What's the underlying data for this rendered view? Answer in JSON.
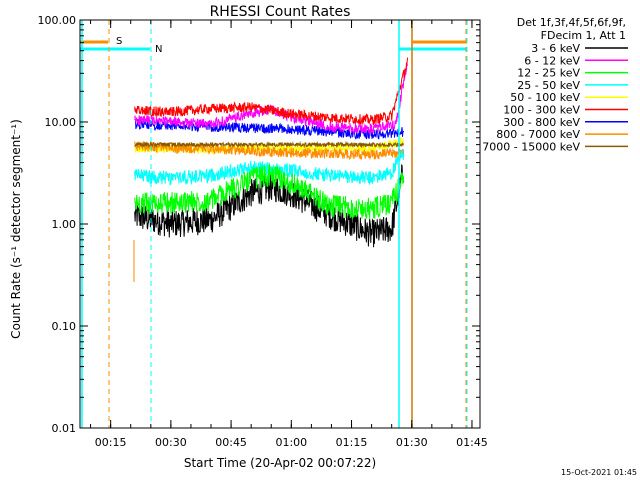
{
  "chart_data": {
    "type": "line",
    "title": "RHESSI Count Rates",
    "xlabel": "Start Time (20-Apr-02 00:07:22)",
    "ylabel": "Count Rate (s⁻¹ detector segment⁻¹)",
    "yscale": "log",
    "ylim": [
      0.01,
      100.0
    ],
    "xlim": [
      "00:07:22",
      "01:47:00"
    ],
    "x_tick_labels": [
      "00:15",
      "00:30",
      "00:45",
      "01:00",
      "01:15",
      "01:30",
      "01:45"
    ],
    "y_tick_labels": [
      "100.00",
      "10.00",
      "1.00",
      "0.10",
      "0.01"
    ],
    "grid": false,
    "legend_position": "top-right",
    "legend_header": [
      "Det 1f,3f,4f,5f,6f,9f,",
      "FDecim 1, Att 1"
    ],
    "series": [
      {
        "name": "3 - 6 keV",
        "color": "#000000",
        "x": [
          "00:21",
          "00:30",
          "00:40",
          "00:50",
          "00:55",
          "01:00",
          "01:10",
          "01:20",
          "01:25",
          "01:28"
        ],
        "values": [
          1.2,
          1.0,
          1.1,
          2.0,
          2.3,
          2.0,
          1.2,
          0.8,
          0.9,
          3.5
        ]
      },
      {
        "name": "6 - 12 keV",
        "color": "#ff00ff",
        "x": [
          "00:21",
          "00:40",
          "00:50",
          "00:55",
          "01:00",
          "01:10",
          "01:20",
          "01:26",
          "01:29"
        ],
        "values": [
          10.5,
          9.5,
          12.0,
          13.5,
          11.0,
          9.0,
          8.5,
          9.5,
          38.0
        ]
      },
      {
        "name": "12 - 25 keV",
        "color": "#00ff00",
        "x": [
          "00:21",
          "00:30",
          "00:40",
          "00:50",
          "00:55",
          "01:00",
          "01:10",
          "01:20",
          "01:25",
          "01:28"
        ],
        "values": [
          1.6,
          1.6,
          1.7,
          2.8,
          3.0,
          2.5,
          1.5,
          1.4,
          1.6,
          3.0
        ]
      },
      {
        "name": "25 - 50 keV",
        "color": "#00ffff",
        "x": [
          "00:21",
          "00:30",
          "00:40",
          "00:50",
          "01:00",
          "01:10",
          "01:20",
          "01:25",
          "01:28"
        ],
        "values": [
          3.0,
          2.8,
          3.0,
          3.6,
          3.3,
          3.0,
          2.8,
          3.2,
          5.0
        ]
      },
      {
        "name": "50 - 100 keV",
        "color": "#ffff00",
        "x": [
          "00:21",
          "00:40",
          "01:00",
          "01:20",
          "01:28"
        ],
        "values": [
          5.5,
          5.4,
          5.6,
          5.5,
          6.5
        ]
      },
      {
        "name": "100 - 300 keV",
        "color": "#ff0000",
        "x": [
          "00:21",
          "00:30",
          "00:40",
          "00:50",
          "00:55",
          "01:00",
          "01:10",
          "01:20",
          "01:25",
          "01:29"
        ],
        "values": [
          13.0,
          12.5,
          13.5,
          14.0,
          13.0,
          12.0,
          11.0,
          10.5,
          11.5,
          40.0
        ]
      },
      {
        "name": "300 - 800 keV",
        "color": "#0000ff",
        "x": [
          "00:21",
          "00:40",
          "01:00",
          "01:20",
          "01:28"
        ],
        "values": [
          9.5,
          9.0,
          8.5,
          7.5,
          8.0
        ]
      },
      {
        "name": "800 - 7000 keV",
        "color": "#ff8c00",
        "x": [
          "00:21",
          "00:40",
          "01:00",
          "01:20",
          "01:28"
        ],
        "values": [
          5.8,
          5.4,
          5.0,
          4.8,
          5.0
        ]
      },
      {
        "name": "7000 - 15000 keV",
        "color": "#8b5a00",
        "x": [
          "00:21",
          "00:40",
          "01:00",
          "01:20",
          "01:28"
        ],
        "values": [
          6.0,
          6.0,
          6.0,
          6.0,
          6.0
        ]
      }
    ],
    "annotations": [
      {
        "text": "S",
        "color": "#ff8c00"
      },
      {
        "text": "N",
        "color": "#00ffff"
      }
    ],
    "footer": "15-Oct-2021 01:45"
  }
}
